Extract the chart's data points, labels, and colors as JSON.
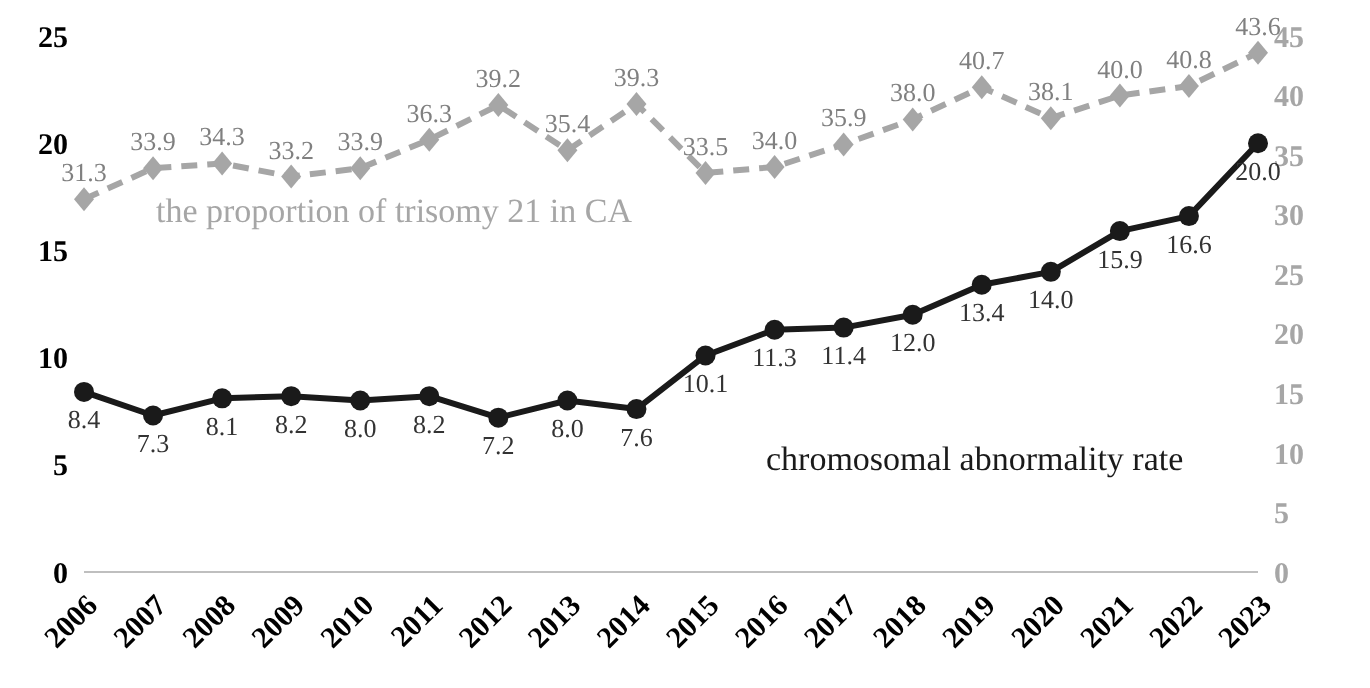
{
  "chart_data": {
    "type": "line",
    "categories": [
      "2006",
      "2007",
      "2008",
      "2009",
      "2010",
      "2011",
      "2012",
      "2013",
      "2014",
      "2015",
      "2016",
      "2017",
      "2018",
      "2019",
      "2020",
      "2021",
      "2022",
      "2023"
    ],
    "series": [
      {
        "name": "chromosomal abnormality rate",
        "color": "#1a1a1a",
        "marker": "circle",
        "line_style": "solid",
        "values": [
          8.4,
          7.3,
          8.1,
          8.2,
          8.0,
          8.2,
          7.2,
          8.0,
          7.6,
          10.1,
          11.3,
          11.4,
          12.0,
          13.4,
          14.0,
          15.9,
          16.6,
          20.0
        ],
        "value_labels": [
          "8.4",
          "7.3",
          "8.1",
          "8.2",
          "8.0",
          "8.2",
          "7.2",
          "8.0",
          "7.6",
          "10.1",
          "11.3",
          "11.4",
          "12.0",
          "13.4",
          "14.0",
          "15.9",
          "16.6",
          "20.0"
        ]
      },
      {
        "name": "the proportion of trisomy 21 in CA",
        "color": "#a6a6a6",
        "marker": "diamond",
        "line_style": "dashed",
        "axis": "y2",
        "values": [
          31.3,
          33.9,
          34.3,
          33.2,
          33.9,
          36.3,
          39.2,
          35.4,
          39.3,
          33.5,
          34.0,
          35.9,
          38.0,
          40.7,
          38.1,
          40.0,
          40.8,
          43.6
        ],
        "value_labels": [
          "31.3",
          "33.9",
          "34.3",
          "33.2",
          "33.9",
          "36.3",
          "39.2",
          "35.4",
          "39.3",
          "33.5",
          "34.0",
          "35.9",
          "38.0",
          "40.7",
          "38.1",
          "40.0",
          "40.8",
          "43.6"
        ]
      }
    ],
    "ylim": [
      0,
      25
    ],
    "yticks": [
      0,
      5,
      10,
      15,
      20,
      25
    ],
    "y2lim": [
      0,
      45
    ],
    "y2ticks": [
      0,
      5,
      10,
      15,
      20,
      25,
      30,
      35,
      40,
      45
    ],
    "grid": false,
    "legend": false
  }
}
